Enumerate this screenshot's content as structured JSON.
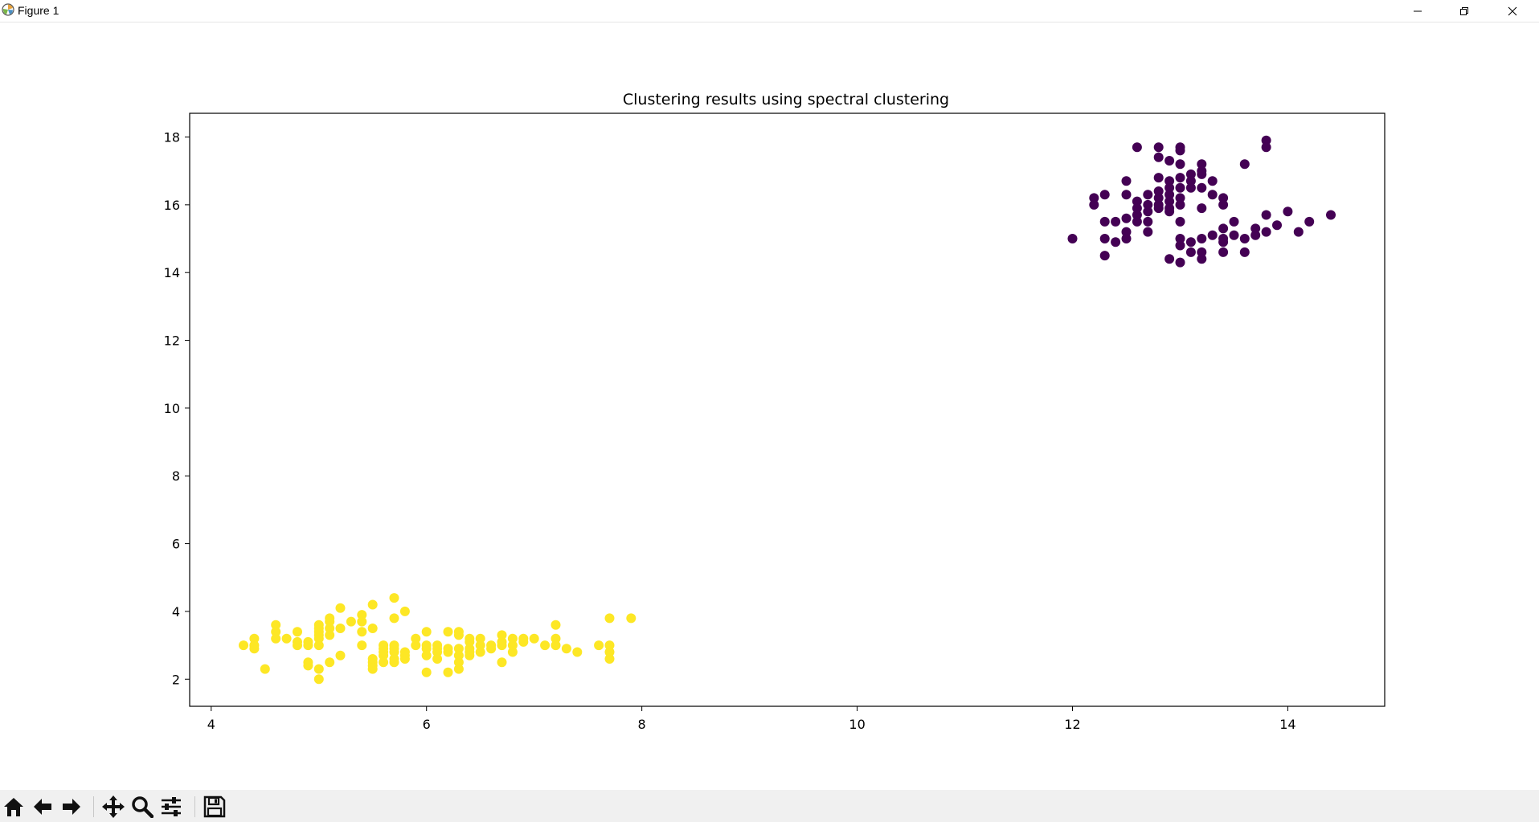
{
  "window": {
    "title": "Figure 1"
  },
  "toolbar": {
    "buttons": [
      "home-icon",
      "back-icon",
      "forward-icon",
      "pan-icon",
      "zoom-icon",
      "configure-subplots-icon",
      "save-icon"
    ]
  },
  "chart_data": {
    "type": "scatter",
    "title": "Clustering results using spectral clustering",
    "xlabel": "",
    "ylabel": "",
    "xlim": [
      3.8,
      14.9
    ],
    "ylim": [
      1.2,
      18.7
    ],
    "xticks": [
      4,
      6,
      8,
      10,
      12,
      14
    ],
    "yticks": [
      2,
      4,
      6,
      8,
      10,
      12,
      14,
      16,
      18
    ],
    "grid": false,
    "legend": "none",
    "colors": {
      "cluster_0": "#440154",
      "cluster_1": "#fde725"
    },
    "series": [
      {
        "color_key": "cluster_0",
        "points": [
          [
            12.0,
            15.0
          ],
          [
            12.2,
            16.2
          ],
          [
            12.2,
            16.0
          ],
          [
            12.3,
            15.5
          ],
          [
            12.3,
            15.0
          ],
          [
            12.3,
            14.5
          ],
          [
            12.3,
            16.3
          ],
          [
            12.4,
            15.5
          ],
          [
            12.4,
            14.9
          ],
          [
            12.5,
            15.6
          ],
          [
            12.5,
            15.2
          ],
          [
            12.5,
            15.0
          ],
          [
            12.5,
            16.7
          ],
          [
            12.5,
            16.3
          ],
          [
            12.6,
            15.7
          ],
          [
            12.6,
            15.5
          ],
          [
            12.6,
            16.1
          ],
          [
            12.6,
            17.7
          ],
          [
            12.6,
            15.9
          ],
          [
            12.7,
            15.8
          ],
          [
            12.7,
            15.2
          ],
          [
            12.7,
            16.0
          ],
          [
            12.7,
            16.3
          ],
          [
            12.7,
            15.5
          ],
          [
            12.8,
            16.2
          ],
          [
            12.8,
            16.4
          ],
          [
            12.8,
            15.9
          ],
          [
            12.8,
            16.8
          ],
          [
            12.8,
            17.4
          ],
          [
            12.8,
            17.7
          ],
          [
            12.8,
            16.0
          ],
          [
            12.9,
            16.1
          ],
          [
            12.9,
            15.8
          ],
          [
            12.9,
            16.5
          ],
          [
            12.9,
            16.7
          ],
          [
            12.9,
            17.3
          ],
          [
            12.9,
            14.4
          ],
          [
            12.9,
            15.9
          ],
          [
            12.9,
            16.3
          ],
          [
            13.0,
            16.0
          ],
          [
            13.0,
            16.2
          ],
          [
            13.0,
            16.5
          ],
          [
            13.0,
            15.5
          ],
          [
            13.0,
            17.7
          ],
          [
            13.0,
            17.6
          ],
          [
            13.0,
            14.3
          ],
          [
            13.0,
            14.8
          ],
          [
            13.0,
            15.0
          ],
          [
            13.0,
            16.8
          ],
          [
            13.0,
            17.2
          ],
          [
            13.1,
            16.5
          ],
          [
            13.1,
            16.9
          ],
          [
            13.1,
            14.6
          ],
          [
            13.1,
            14.9
          ],
          [
            13.1,
            16.7
          ],
          [
            13.2,
            17.2
          ],
          [
            13.2,
            17.0
          ],
          [
            13.2,
            16.9
          ],
          [
            13.2,
            15.9
          ],
          [
            13.2,
            16.5
          ],
          [
            13.2,
            14.4
          ],
          [
            13.2,
            14.6
          ],
          [
            13.2,
            15.0
          ],
          [
            13.3,
            16.7
          ],
          [
            13.3,
            16.3
          ],
          [
            13.3,
            15.1
          ],
          [
            13.4,
            16.2
          ],
          [
            13.4,
            16.0
          ],
          [
            13.4,
            15.3
          ],
          [
            13.4,
            14.9
          ],
          [
            13.4,
            14.6
          ],
          [
            13.4,
            15.0
          ],
          [
            13.5,
            15.5
          ],
          [
            13.5,
            15.1
          ],
          [
            13.6,
            17.2
          ],
          [
            13.6,
            14.6
          ],
          [
            13.6,
            15.0
          ],
          [
            13.7,
            15.3
          ],
          [
            13.7,
            15.1
          ],
          [
            13.8,
            17.9
          ],
          [
            13.8,
            17.7
          ],
          [
            13.8,
            15.7
          ],
          [
            13.8,
            15.2
          ],
          [
            13.9,
            15.4
          ],
          [
            14.0,
            15.8
          ],
          [
            14.1,
            15.2
          ],
          [
            14.2,
            15.5
          ],
          [
            14.4,
            15.7
          ]
        ]
      },
      {
        "color_key": "cluster_1",
        "points": [
          [
            4.3,
            3.0
          ],
          [
            4.4,
            3.2
          ],
          [
            4.4,
            3.0
          ],
          [
            4.4,
            2.9
          ],
          [
            4.5,
            2.3
          ],
          [
            4.6,
            3.6
          ],
          [
            4.6,
            3.4
          ],
          [
            4.6,
            3.2
          ],
          [
            4.7,
            3.2
          ],
          [
            4.8,
            3.0
          ],
          [
            4.8,
            3.4
          ],
          [
            4.8,
            3.1
          ],
          [
            4.9,
            3.1
          ],
          [
            4.9,
            2.5
          ],
          [
            4.9,
            3.0
          ],
          [
            4.9,
            2.4
          ],
          [
            5.0,
            3.0
          ],
          [
            5.0,
            3.4
          ],
          [
            5.0,
            3.6
          ],
          [
            5.0,
            3.3
          ],
          [
            5.0,
            2.3
          ],
          [
            5.0,
            2.0
          ],
          [
            5.0,
            3.5
          ],
          [
            5.0,
            3.2
          ],
          [
            5.1,
            3.5
          ],
          [
            5.1,
            3.8
          ],
          [
            5.1,
            3.3
          ],
          [
            5.1,
            3.7
          ],
          [
            5.1,
            2.5
          ],
          [
            5.2,
            3.5
          ],
          [
            5.2,
            4.1
          ],
          [
            5.2,
            2.7
          ],
          [
            5.3,
            3.7
          ],
          [
            5.4,
            3.9
          ],
          [
            5.4,
            3.4
          ],
          [
            5.4,
            3.0
          ],
          [
            5.4,
            3.7
          ],
          [
            5.5,
            4.2
          ],
          [
            5.5,
            3.5
          ],
          [
            5.5,
            2.3
          ],
          [
            5.5,
            2.4
          ],
          [
            5.5,
            2.5
          ],
          [
            5.5,
            2.6
          ],
          [
            5.6,
            2.9
          ],
          [
            5.6,
            3.0
          ],
          [
            5.6,
            2.7
          ],
          [
            5.6,
            2.5
          ],
          [
            5.6,
            2.8
          ],
          [
            5.7,
            4.4
          ],
          [
            5.7,
            3.8
          ],
          [
            5.7,
            2.8
          ],
          [
            5.7,
            2.6
          ],
          [
            5.7,
            3.0
          ],
          [
            5.7,
            2.9
          ],
          [
            5.7,
            2.5
          ],
          [
            5.8,
            4.0
          ],
          [
            5.8,
            2.7
          ],
          [
            5.8,
            2.6
          ],
          [
            5.8,
            2.8
          ],
          [
            5.9,
            3.0
          ],
          [
            5.9,
            3.2
          ],
          [
            6.0,
            2.2
          ],
          [
            6.0,
            2.9
          ],
          [
            6.0,
            3.4
          ],
          [
            6.0,
            2.7
          ],
          [
            6.0,
            3.0
          ],
          [
            6.1,
            2.9
          ],
          [
            6.1,
            2.8
          ],
          [
            6.1,
            3.0
          ],
          [
            6.1,
            2.6
          ],
          [
            6.2,
            2.2
          ],
          [
            6.2,
            2.9
          ],
          [
            6.2,
            3.4
          ],
          [
            6.2,
            2.8
          ],
          [
            6.3,
            3.3
          ],
          [
            6.3,
            2.5
          ],
          [
            6.3,
            2.3
          ],
          [
            6.3,
            2.7
          ],
          [
            6.3,
            2.9
          ],
          [
            6.3,
            3.4
          ],
          [
            6.4,
            3.2
          ],
          [
            6.4,
            2.9
          ],
          [
            6.4,
            2.7
          ],
          [
            6.4,
            3.1
          ],
          [
            6.4,
            2.8
          ],
          [
            6.5,
            2.8
          ],
          [
            6.5,
            3.0
          ],
          [
            6.5,
            3.2
          ],
          [
            6.6,
            2.9
          ],
          [
            6.6,
            3.0
          ],
          [
            6.7,
            3.1
          ],
          [
            6.7,
            2.5
          ],
          [
            6.7,
            3.3
          ],
          [
            6.7,
            3.0
          ],
          [
            6.8,
            2.8
          ],
          [
            6.8,
            3.2
          ],
          [
            6.8,
            3.0
          ],
          [
            6.9,
            3.1
          ],
          [
            6.9,
            3.2
          ],
          [
            7.0,
            3.2
          ],
          [
            7.1,
            3.0
          ],
          [
            7.2,
            3.6
          ],
          [
            7.2,
            3.2
          ],
          [
            7.2,
            3.0
          ],
          [
            7.3,
            2.9
          ],
          [
            7.4,
            2.8
          ],
          [
            7.6,
            3.0
          ],
          [
            7.7,
            3.8
          ],
          [
            7.7,
            2.6
          ],
          [
            7.7,
            2.8
          ],
          [
            7.7,
            3.0
          ],
          [
            7.9,
            3.8
          ]
        ]
      }
    ]
  }
}
